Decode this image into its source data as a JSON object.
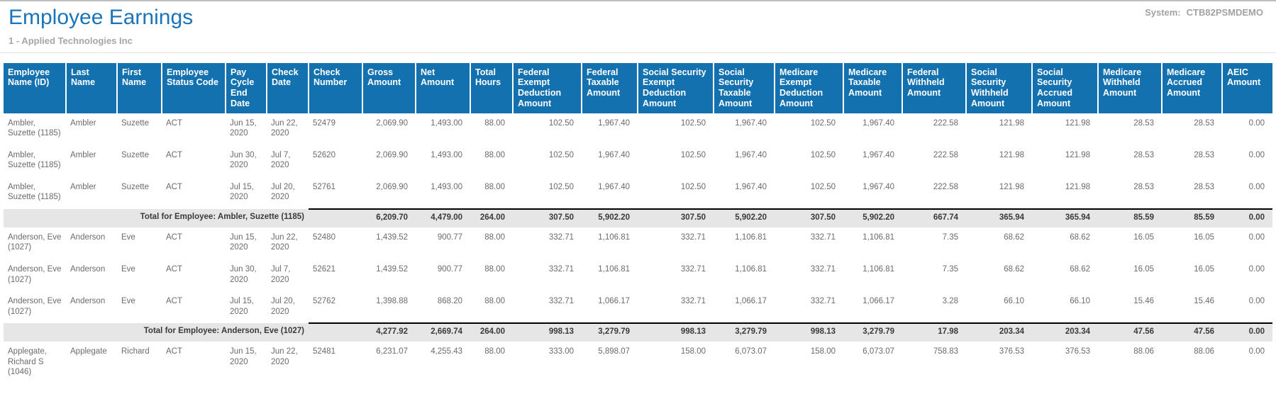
{
  "header": {
    "title": "Employee Earnings",
    "subtitle": "1 - Applied Technologies Inc",
    "system_label": "System:",
    "system_value": "CTB82PSMDEMO"
  },
  "colors": {
    "title_blue": "#1b74ba",
    "table_header_bg": "#1371af",
    "table_header_text": "#ffffff",
    "data_text": "#6b6b6b",
    "muted_gray": "#a6a6a6",
    "total_row_bg": "#e6e6e6",
    "total_rule": "#000000"
  },
  "table": {
    "columns": [
      "Employee Name (ID)",
      "Last Name",
      "First Name",
      "Employee Status Code",
      "Pay Cycle End Date",
      "Check Date",
      "Check Number",
      "Gross Amount",
      "Net Amount",
      "Total Hours",
      "Federal Exempt Deduction Amount",
      "Federal Taxable Amount",
      "Social Security Exempt Deduction Amount",
      "Social Security Taxable Amount",
      "Medicare Exempt Deduction Amount",
      "Medicare Taxable Amount",
      "Federal Withheld Amount",
      "Social Security Withheld Amount",
      "Social Security Accrued Amount",
      "Medicare Withheld Amount",
      "Medicare Accrued Amount",
      "AEIC Amount"
    ],
    "rows": [
      {
        "type": "data",
        "cells": [
          "Ambler, Suzette (1185)",
          "Ambler",
          "Suzette",
          "ACT",
          "Jun 15, 2020",
          "Jun 22, 2020",
          "52479",
          "2,069.90",
          "1,493.00",
          "88.00",
          "102.50",
          "1,967.40",
          "102.50",
          "1,967.40",
          "102.50",
          "1,967.40",
          "222.58",
          "121.98",
          "121.98",
          "28.53",
          "28.53",
          "0.00"
        ]
      },
      {
        "type": "data",
        "cells": [
          "Ambler, Suzette (1185)",
          "Ambler",
          "Suzette",
          "ACT",
          "Jun 30, 2020",
          "Jul 7, 2020",
          "52620",
          "2,069.90",
          "1,493.00",
          "88.00",
          "102.50",
          "1,967.40",
          "102.50",
          "1,967.40",
          "102.50",
          "1,967.40",
          "222.58",
          "121.98",
          "121.98",
          "28.53",
          "28.53",
          "0.00"
        ]
      },
      {
        "type": "data",
        "cells": [
          "Ambler, Suzette (1185)",
          "Ambler",
          "Suzette",
          "ACT",
          "Jul 15, 2020",
          "Jul 20, 2020",
          "52761",
          "2,069.90",
          "1,493.00",
          "88.00",
          "102.50",
          "1,967.40",
          "102.50",
          "1,967.40",
          "102.50",
          "1,967.40",
          "222.58",
          "121.98",
          "121.98",
          "28.53",
          "28.53",
          "0.00"
        ]
      },
      {
        "type": "total",
        "label": "Total for Employee: Ambler, Suzette (1185)",
        "values": [
          "6,209.70",
          "4,479.00",
          "264.00",
          "307.50",
          "5,902.20",
          "307.50",
          "5,902.20",
          "307.50",
          "5,902.20",
          "667.74",
          "365.94",
          "365.94",
          "85.59",
          "85.59",
          "0.00"
        ]
      },
      {
        "type": "data",
        "cells": [
          "Anderson, Eve (1027)",
          "Anderson",
          "Eve",
          "ACT",
          "Jun 15, 2020",
          "Jun 22, 2020",
          "52480",
          "1,439.52",
          "900.77",
          "88.00",
          "332.71",
          "1,106.81",
          "332.71",
          "1,106.81",
          "332.71",
          "1,106.81",
          "7.35",
          "68.62",
          "68.62",
          "16.05",
          "16.05",
          "0.00"
        ]
      },
      {
        "type": "data",
        "cells": [
          "Anderson, Eve (1027)",
          "Anderson",
          "Eve",
          "ACT",
          "Jun 30, 2020",
          "Jul 7, 2020",
          "52621",
          "1,439.52",
          "900.77",
          "88.00",
          "332.71",
          "1,106.81",
          "332.71",
          "1,106.81",
          "332.71",
          "1,106.81",
          "7.35",
          "68.62",
          "68.62",
          "16.05",
          "16.05",
          "0.00"
        ]
      },
      {
        "type": "data",
        "cells": [
          "Anderson, Eve (1027)",
          "Anderson",
          "Eve",
          "ACT",
          "Jul 15, 2020",
          "Jul 20, 2020",
          "52762",
          "1,398.88",
          "868.20",
          "88.00",
          "332.71",
          "1,066.17",
          "332.71",
          "1,066.17",
          "332.71",
          "1,066.17",
          "3.28",
          "66.10",
          "66.10",
          "15.46",
          "15.46",
          "0.00"
        ]
      },
      {
        "type": "total",
        "label": "Total for Employee: Anderson, Eve (1027)",
        "values": [
          "4,277.92",
          "2,669.74",
          "264.00",
          "998.13",
          "3,279.79",
          "998.13",
          "3,279.79",
          "998.13",
          "3,279.79",
          "17.98",
          "203.34",
          "203.34",
          "47.56",
          "47.56",
          "0.00"
        ]
      },
      {
        "type": "data",
        "cells": [
          "Applegate, Richard S (1046)",
          "Applegate",
          "Richard",
          "ACT",
          "Jun 15, 2020",
          "Jun 22, 2020",
          "52481",
          "6,231.07",
          "4,255.43",
          "88.00",
          "333.00",
          "5,898.07",
          "158.00",
          "6,073.07",
          "158.00",
          "6,073.07",
          "758.83",
          "376.53",
          "376.53",
          "88.06",
          "88.06",
          "0.00"
        ]
      }
    ]
  }
}
